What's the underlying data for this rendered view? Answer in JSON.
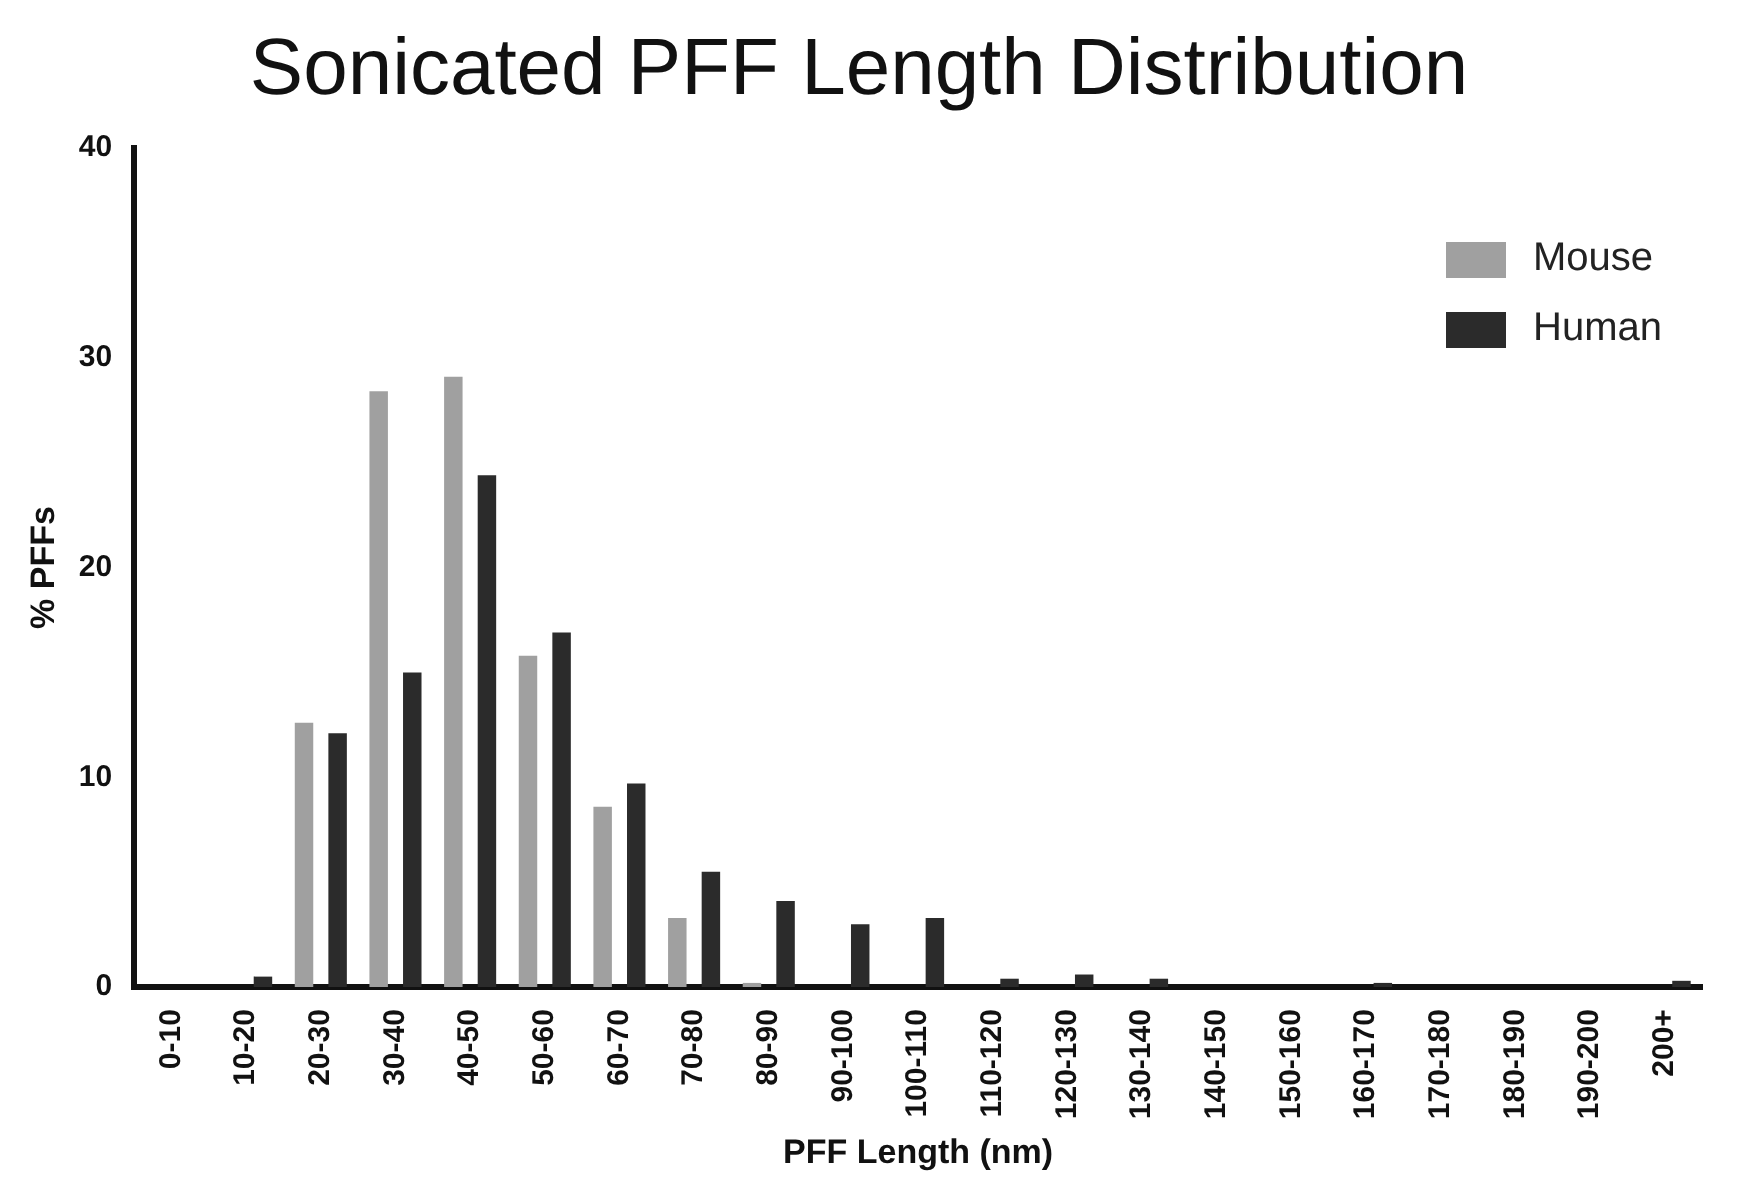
{
  "chart_data": {
    "type": "bar",
    "title": "Sonicated PFF Length Distribution",
    "xlabel": "PFF Length (nm)",
    "ylabel": "% PFFs",
    "categories": [
      "0-10",
      "10-20",
      "20-30",
      "30-40",
      "40-50",
      "50-60",
      "60-70",
      "70-80",
      "80-90",
      "90-100",
      "100-110",
      "110-120",
      "120-130",
      "130-140",
      "140-150",
      "150-160",
      "160-170",
      "170-180",
      "180-190",
      "190-200",
      "200+"
    ],
    "series": [
      {
        "name": "Mouse",
        "color": "#a0a0a0",
        "values": [
          0,
          0,
          12.6,
          28.4,
          29.1,
          15.8,
          8.6,
          3.3,
          0.2,
          0,
          0,
          0,
          0,
          0,
          0,
          0,
          0,
          0,
          0,
          0,
          0
        ]
      },
      {
        "name": "Human",
        "color": "#2b2b2b",
        "values": [
          0,
          0.5,
          12.1,
          15,
          24.4,
          16.9,
          9.7,
          5.5,
          4.1,
          3,
          3.3,
          0.4,
          0.6,
          0.4,
          0,
          0,
          0.2,
          0,
          0,
          0,
          0.3
        ]
      }
    ],
    "ylim": [
      0,
      40
    ],
    "yticks": [
      0,
      10,
      20,
      30,
      40
    ],
    "grid": false,
    "legend": "top right"
  }
}
